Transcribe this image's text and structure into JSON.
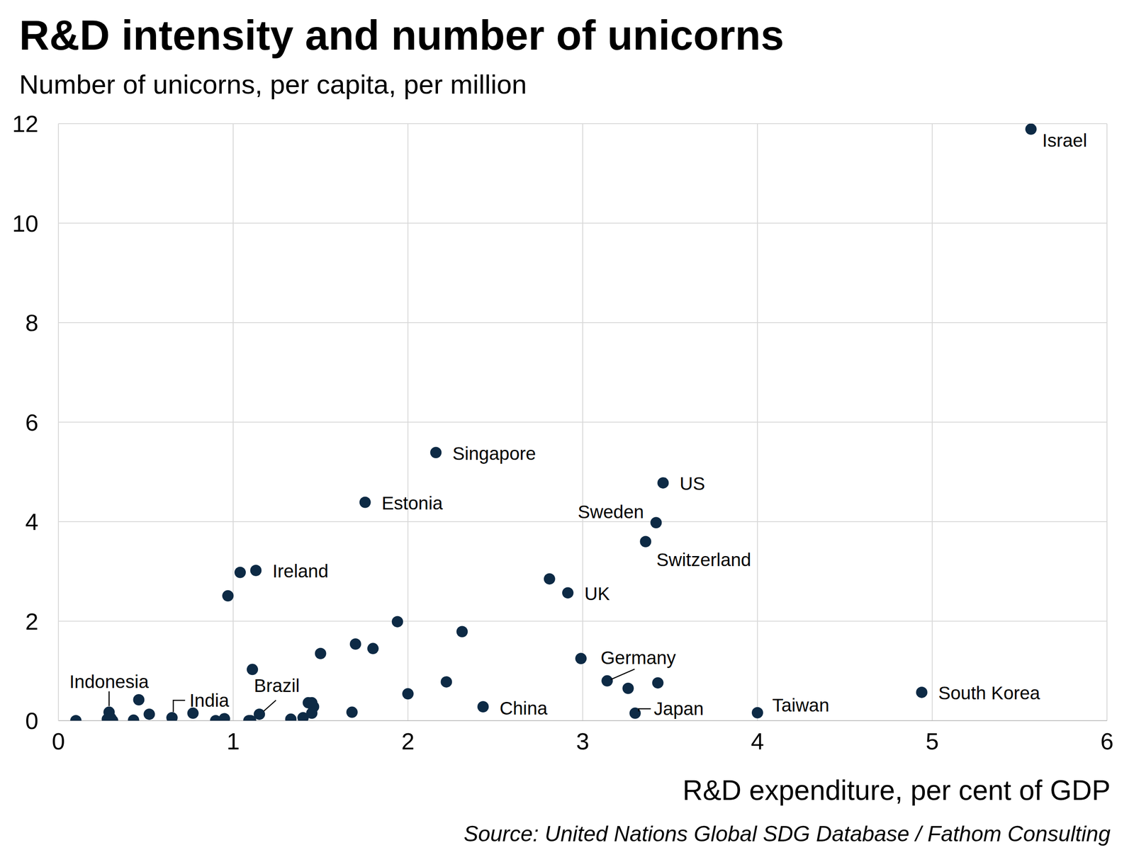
{
  "chart_data": {
    "type": "scatter",
    "title": "R&D intensity and number of unicorns",
    "subtitle": "Number of unicorns, per capita, per million",
    "x_label": "R&D expenditure, per cent of GDP",
    "source": "Source: United Nations Global SDG Database / Fathom Consulting",
    "color": "#0d2a45",
    "marker": "circle",
    "grid": true,
    "xlim": [
      0,
      6
    ],
    "ylim": [
      0,
      12
    ],
    "xticks": [
      0,
      1,
      2,
      3,
      4,
      5,
      6
    ],
    "yticks": [
      0,
      2,
      4,
      6,
      8,
      10,
      12
    ],
    "labels": [
      "Israel",
      "Singapore",
      "US",
      "Estonia",
      "Sweden",
      "Switzerland",
      "Ireland",
      "UK",
      "Germany",
      "China",
      "Japan",
      "Taiwan",
      "South Korea",
      "Indonesia",
      "India",
      "Brazil",
      null,
      null,
      null,
      null,
      null,
      null,
      null,
      null,
      null,
      null,
      null,
      null,
      null,
      null,
      null,
      null,
      null,
      null,
      null,
      null,
      null,
      null,
      null,
      null,
      null,
      null,
      null,
      null,
      null,
      null,
      null,
      null,
      null
    ],
    "x": [
      5.565,
      2.16,
      3.46,
      1.755,
      3.42,
      3.36,
      1.13,
      2.915,
      3.14,
      2.43,
      3.3,
      4.0,
      4.94,
      0.29,
      0.65,
      1.15,
      1.04,
      0.97,
      2.81,
      1.94,
      2.31,
      1.7,
      1.8,
      1.5,
      2.99,
      1.11,
      3.26,
      3.43,
      2.22,
      0.46,
      2.0,
      0.1,
      0.28,
      0.31,
      0.43,
      0.52,
      0.77,
      0.9,
      0.95,
      1.09,
      1.1,
      1.33,
      1.4,
      1.43,
      1.45,
      1.46,
      1.45,
      1.68,
      0.3
    ],
    "y": [
      11.89,
      5.39,
      4.78,
      4.39,
      3.98,
      3.6,
      3.02,
      2.57,
      0.8,
      0.28,
      0.15,
      0.16,
      0.57,
      0.17,
      0.06,
      0.13,
      2.98,
      2.51,
      2.85,
      1.99,
      1.79,
      1.54,
      1.45,
      1.35,
      1.25,
      1.03,
      0.65,
      0.76,
      0.78,
      0.42,
      0.54,
      0.0,
      0.03,
      0.0,
      0.01,
      0.13,
      0.15,
      0.0,
      0.04,
      0.0,
      0.0,
      0.03,
      0.06,
      0.36,
      0.36,
      0.28,
      0.15,
      0.17,
      0.05
    ]
  }
}
